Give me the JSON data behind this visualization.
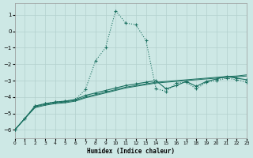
{
  "xlabel": "Humidex (Indice chaleur)",
  "bg_color": "#cde8e5",
  "grid_color": "#b2d0cd",
  "line_color": "#1a7060",
  "xlim": [
    0,
    23
  ],
  "ylim": [
    -6.5,
    1.7
  ],
  "yticks": [
    -6,
    -5,
    -4,
    -3,
    -2,
    -1,
    0,
    1
  ],
  "xticks": [
    0,
    1,
    2,
    3,
    4,
    5,
    6,
    7,
    8,
    9,
    10,
    11,
    12,
    13,
    14,
    15,
    16,
    17,
    18,
    19,
    20,
    21,
    22,
    23
  ],
  "curve1_x": [
    0,
    1,
    2,
    3,
    4,
    5,
    6,
    7,
    8,
    9,
    10,
    11,
    12,
    13,
    14,
    15,
    16,
    17,
    18,
    19,
    20,
    21,
    22,
    23
  ],
  "curve1_y": [
    -6.0,
    -5.3,
    -4.55,
    -4.4,
    -4.3,
    -4.25,
    -4.15,
    -3.55,
    -1.8,
    -1.0,
    1.25,
    0.5,
    0.4,
    -0.55,
    -3.5,
    -3.65,
    -3.15,
    -3.1,
    -3.5,
    -3.1,
    -3.0,
    -2.85,
    -2.95,
    -3.1
  ],
  "curve2_x": [
    0,
    1,
    2,
    3,
    4,
    5,
    6,
    7,
    8,
    9,
    10,
    11,
    12,
    13,
    14,
    15,
    16,
    17,
    18,
    19,
    20,
    21,
    22,
    23
  ],
  "curve2_y": [
    -6.0,
    -5.3,
    -4.55,
    -4.4,
    -4.3,
    -4.25,
    -4.15,
    -3.9,
    -3.75,
    -3.6,
    -3.45,
    -3.3,
    -3.2,
    -3.1,
    -3.0,
    -3.5,
    -3.3,
    -3.05,
    -3.35,
    -3.05,
    -2.9,
    -2.75,
    -2.85,
    -2.95
  ],
  "line1_x": [
    0,
    1,
    2,
    3,
    4,
    5,
    6,
    7,
    8,
    9,
    10,
    11,
    12,
    13,
    14,
    15,
    16,
    17,
    18,
    19,
    20,
    21,
    22,
    23
  ],
  "line1_y": [
    -6.0,
    -5.3,
    -4.6,
    -4.45,
    -4.35,
    -4.3,
    -4.2,
    -4.0,
    -3.85,
    -3.7,
    -3.55,
    -3.4,
    -3.3,
    -3.2,
    -3.1,
    -3.05,
    -3.0,
    -2.95,
    -2.9,
    -2.85,
    -2.8,
    -2.75,
    -2.72,
    -2.65
  ],
  "line2_x": [
    0,
    1,
    2,
    3,
    4,
    5,
    6,
    7,
    8,
    9,
    10,
    11,
    12,
    13,
    14,
    15,
    16,
    17,
    18,
    19,
    20,
    21,
    22,
    23
  ],
  "line2_y": [
    -6.0,
    -5.3,
    -4.65,
    -4.5,
    -4.4,
    -4.35,
    -4.25,
    -4.05,
    -3.9,
    -3.75,
    -3.6,
    -3.45,
    -3.35,
    -3.25,
    -3.15,
    -3.1,
    -3.05,
    -3.0,
    -2.95,
    -2.9,
    -2.85,
    -2.8,
    -2.77,
    -2.72
  ]
}
